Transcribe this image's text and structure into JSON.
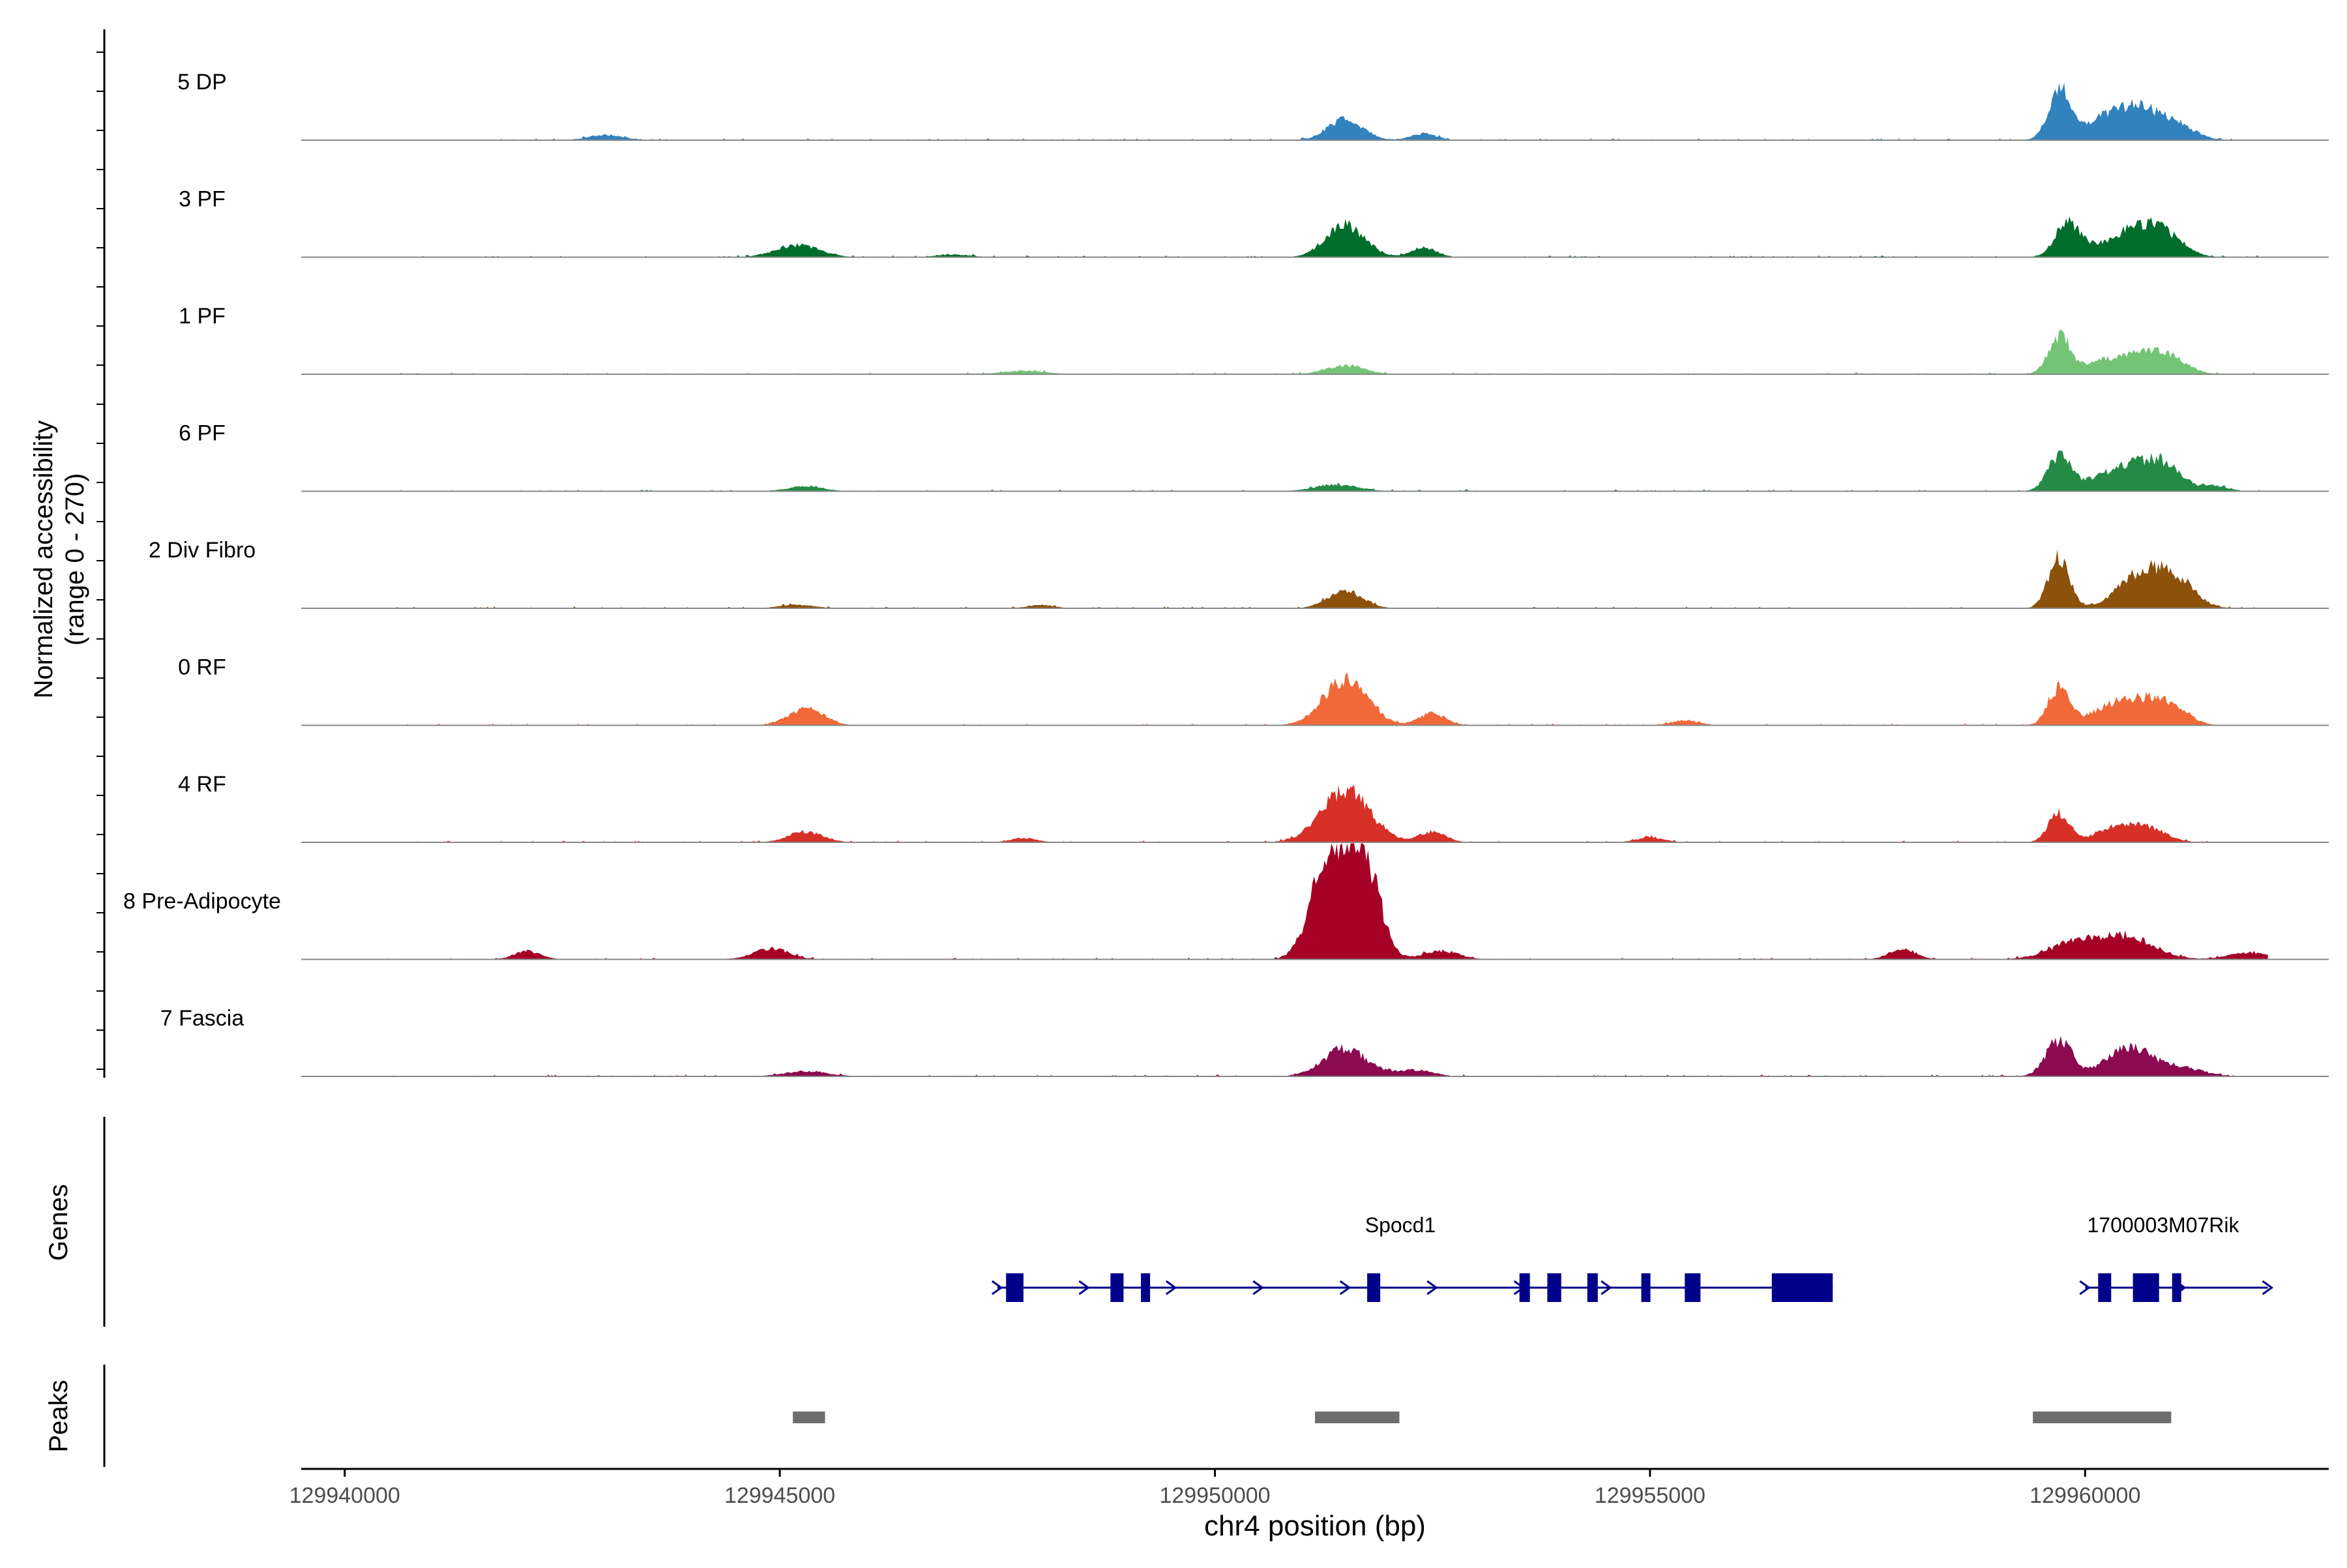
{
  "chart_data": {
    "type": "area",
    "chromosome": "chr4",
    "xlabel": "chr4 position (bp)",
    "xlim": [
      129939500,
      129962800
    ],
    "xticks": [
      129940000,
      129945000,
      129950000,
      129955000,
      129960000
    ],
    "xtick_labels": [
      "129940000",
      "129945000",
      "129950000",
      "129955000",
      "129960000"
    ],
    "coverage": {
      "ylabel_line1": "Normalized accessibility",
      "ylabel_line2": "(range 0 - 270)",
      "ylim": [
        0,
        270
      ],
      "series": [
        {
          "name": "5 DP",
          "color": "#3182bd",
          "peaks": [
            [
              129943000,
              12,
              200
            ],
            [
              129951500,
              48,
              200
            ],
            [
              129952400,
              15,
              150
            ],
            [
              129959700,
              115,
              120
            ],
            [
              129960300,
              55,
              300
            ],
            [
              129960700,
              50,
              250
            ],
            [
              129961100,
              25,
              200
            ]
          ]
        },
        {
          "name": "3 PF",
          "color": "#006d2c",
          "peaks": [
            [
              129945200,
              28,
              250
            ],
            [
              129947000,
              6,
              200
            ],
            [
              129951500,
              75,
              220
            ],
            [
              129952400,
              22,
              150
            ],
            [
              129959800,
              80,
              140
            ],
            [
              129960300,
              30,
              250
            ],
            [
              129960700,
              62,
              240
            ],
            [
              129961000,
              25,
              200
            ]
          ]
        },
        {
          "name": "1 PF",
          "color": "#74c476",
          "peaks": [
            [
              129947800,
              8,
              250
            ],
            [
              129951500,
              20,
              220
            ],
            [
              129959700,
              85,
              120
            ],
            [
              129960200,
              30,
              250
            ],
            [
              129960700,
              40,
              250
            ],
            [
              129961000,
              25,
              200
            ]
          ]
        },
        {
          "name": "6 PF",
          "color": "#238b45",
          "peaks": [
            [
              129945300,
              12,
              200
            ],
            [
              129951400,
              15,
              250
            ],
            [
              129959700,
              80,
              130
            ],
            [
              129960500,
              60,
              350
            ],
            [
              129960900,
              40,
              200
            ],
            [
              129961500,
              12,
              150
            ]
          ]
        },
        {
          "name": "2 Div Fibro",
          "color": "#8c510a",
          "peaks": [
            [
              129945200,
              8,
              200
            ],
            [
              129948000,
              8,
              150
            ],
            [
              129951500,
              40,
              200
            ],
            [
              129959700,
              120,
              120
            ],
            [
              129960700,
              90,
              280
            ],
            [
              129961100,
              40,
              200
            ]
          ]
        },
        {
          "name": "0 RF",
          "color": "#f16938",
          "peaks": [
            [
              129945300,
              40,
              200
            ],
            [
              129951500,
              110,
              250
            ],
            [
              129952500,
              28,
              150
            ],
            [
              129955400,
              12,
              150
            ],
            [
              129959700,
              85,
              120
            ],
            [
              129960300,
              40,
              250
            ],
            [
              129960700,
              45,
              250
            ],
            [
              129961000,
              30,
              200
            ]
          ]
        },
        {
          "name": "4 RF",
          "color": "#d73027",
          "peaks": [
            [
              129945300,
              25,
              200
            ],
            [
              129947800,
              10,
              150
            ],
            [
              129951500,
              120,
              280
            ],
            [
              129952500,
              25,
              150
            ],
            [
              129955000,
              12,
              150
            ],
            [
              129959700,
              70,
              120
            ],
            [
              129960300,
              30,
              200
            ],
            [
              129960700,
              35,
              220
            ]
          ]
        },
        {
          "name": "8 Pre-Adipocyte",
          "color": "#a50026",
          "peaks": [
            [
              129942100,
              20,
              150
            ],
            [
              129944900,
              25,
              200
            ],
            [
              129951300,
              220,
              200
            ],
            [
              129951700,
              245,
              180
            ],
            [
              129952600,
              20,
              200
            ],
            [
              129957900,
              25,
              150
            ],
            [
              129959900,
              40,
              300
            ],
            [
              129960500,
              50,
              300
            ],
            [
              129961900,
              15,
              250
            ]
          ]
        },
        {
          "name": "7 Fascia",
          "color": "#8b0a50",
          "peaks": [
            [
              129945300,
              12,
              250
            ],
            [
              129951500,
              65,
              250
            ],
            [
              129952300,
              15,
              200
            ],
            [
              129959700,
              85,
              150
            ],
            [
              129960500,
              70,
              250
            ],
            [
              129961100,
              20,
              250
            ]
          ]
        }
      ]
    },
    "genes": {
      "label": "Genes",
      "color": "#00008b",
      "items": [
        {
          "name": "Spocd1",
          "start": 129947500,
          "end": 129957100,
          "exons": [
            [
              129947600,
              129947800
            ],
            [
              129948800,
              129948950
            ],
            [
              129949150,
              129949250
            ],
            [
              129951750,
              129951900
            ],
            [
              129953500,
              129953620
            ],
            [
              129953820,
              129953980
            ],
            [
              129954280,
              129954400
            ],
            [
              129954900,
              129954980
            ],
            [
              129955400,
              129955580
            ],
            [
              129956400,
              129957100
            ]
          ],
          "arrows": [
            129947500,
            129948500,
            129949500,
            129950500,
            129951500,
            129952500,
            129953500,
            129954500
          ]
        },
        {
          "name": "1700003M07Rik",
          "start": 129960000,
          "end": 129962100,
          "exons": [
            [
              129960150,
              129960300
            ],
            [
              129960550,
              129960850
            ],
            [
              129961000,
              129961050
            ]
          ],
          "arrows": [
            129960000,
            129961100,
            129962100
          ]
        }
      ]
    },
    "peaks": {
      "label": "Peaks",
      "color": "#6e6e6e",
      "regions": [
        [
          129945150,
          129945520
        ],
        [
          129951150,
          129952120
        ],
        [
          129959400,
          129960990
        ]
      ]
    }
  }
}
